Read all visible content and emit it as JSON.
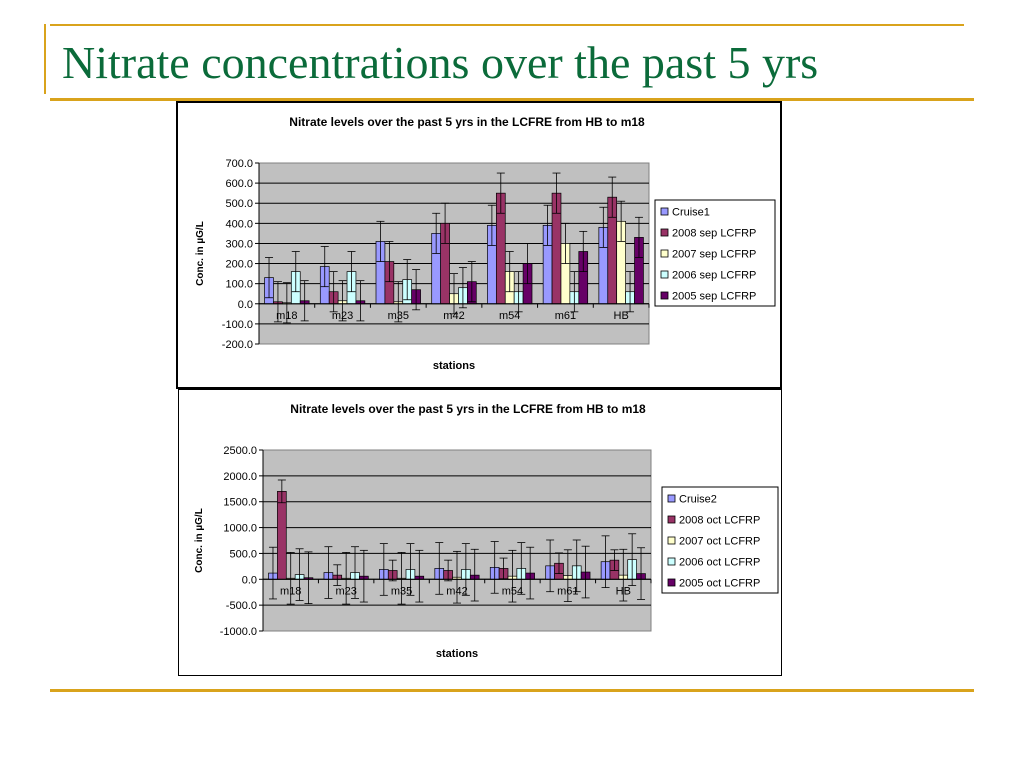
{
  "slide": {
    "title": "Nitrate concentrations over the past 5 yrs"
  },
  "colors": {
    "accent_line": "#d9a31c",
    "title": "#0b6b3a",
    "plot_bg": "#c0c0c0",
    "series": [
      "#9999ff",
      "#993366",
      "#ffffcc",
      "#ccffff",
      "#660066"
    ]
  },
  "chart_data": [
    {
      "type": "bar",
      "title": "Nitrate levels over the past 5 yrs in the LCFRE from HB to m18",
      "xlabel": "stations",
      "ylabel": "Conc. in µG/L",
      "ylim": [
        -200,
        700
      ],
      "ytick_step": 100,
      "yticks": [
        "700.0",
        "600.0",
        "500.0",
        "400.0",
        "300.0",
        "200.0",
        "100.0",
        "0.0",
        "-100.0",
        "-200.0"
      ],
      "grid": true,
      "legend": "right",
      "categories": [
        "m18",
        "m23",
        "m35",
        "m42",
        "m54",
        "m61",
        "HB"
      ],
      "series": [
        {
          "name": "Cruise1",
          "values": [
            130,
            185,
            310,
            350,
            390,
            390,
            380
          ],
          "errors": [
            100,
            100,
            100,
            100,
            100,
            100,
            100
          ]
        },
        {
          "name": "2008 sep LCFRP",
          "values": [
            10,
            60,
            210,
            400,
            550,
            550,
            530
          ],
          "errors": [
            100,
            100,
            100,
            100,
            100,
            100,
            100
          ]
        },
        {
          "name": "2007 sep LCFRP",
          "values": [
            5,
            15,
            10,
            50,
            160,
            300,
            410
          ],
          "errors": [
            100,
            100,
            100,
            100,
            100,
            100,
            100
          ]
        },
        {
          "name": "2006 sep LCFRP",
          "values": [
            160,
            160,
            120,
            80,
            60,
            60,
            60
          ],
          "errors": [
            100,
            100,
            100,
            100,
            100,
            100,
            100
          ]
        },
        {
          "name": "2005 sep LCFRP",
          "values": [
            15,
            15,
            70,
            110,
            200,
            260,
            330
          ],
          "errors": [
            100,
            100,
            100,
            100,
            100,
            100,
            100
          ]
        }
      ]
    },
    {
      "type": "bar",
      "title": "Nitrate levels over the past 5 yrs in the LCFRE from HB to m18",
      "xlabel": "stations",
      "ylabel": "Conc. in µG/L",
      "ylim": [
        -1000,
        2500
      ],
      "ytick_step": 500,
      "yticks": [
        "2500.0",
        "2000.0",
        "1500.0",
        "1000.0",
        "500.0",
        "0.0",
        "-500.0",
        "-1000.0"
      ],
      "grid": true,
      "legend": "right",
      "categories": [
        "m18",
        "m23",
        "m35",
        "m42",
        "m54",
        "m61",
        "HB"
      ],
      "series": [
        {
          "name": "Cruise2",
          "values": [
            120,
            130,
            190,
            210,
            230,
            260,
            340
          ],
          "errors": [
            500,
            500,
            500,
            500,
            500,
            500,
            500
          ]
        },
        {
          "name": "2008 oct LCFRP",
          "values": [
            1700,
            80,
            170,
            170,
            210,
            310,
            370
          ],
          "errors": [
            220,
            200,
            200,
            200,
            200,
            200,
            200
          ]
        },
        {
          "name": "2007 oct LCFRP",
          "values": [
            20,
            20,
            20,
            40,
            60,
            70,
            80
          ],
          "errors": [
            500,
            500,
            500,
            500,
            500,
            500,
            500
          ]
        },
        {
          "name": "2006 oct LCFRP",
          "values": [
            90,
            130,
            190,
            190,
            210,
            260,
            380
          ],
          "errors": [
            500,
            500,
            500,
            500,
            500,
            500,
            500
          ]
        },
        {
          "name": "2005 oct LCFRP",
          "values": [
            30,
            60,
            60,
            80,
            120,
            140,
            110
          ],
          "errors": [
            500,
            500,
            500,
            500,
            500,
            500,
            500
          ]
        }
      ]
    }
  ]
}
